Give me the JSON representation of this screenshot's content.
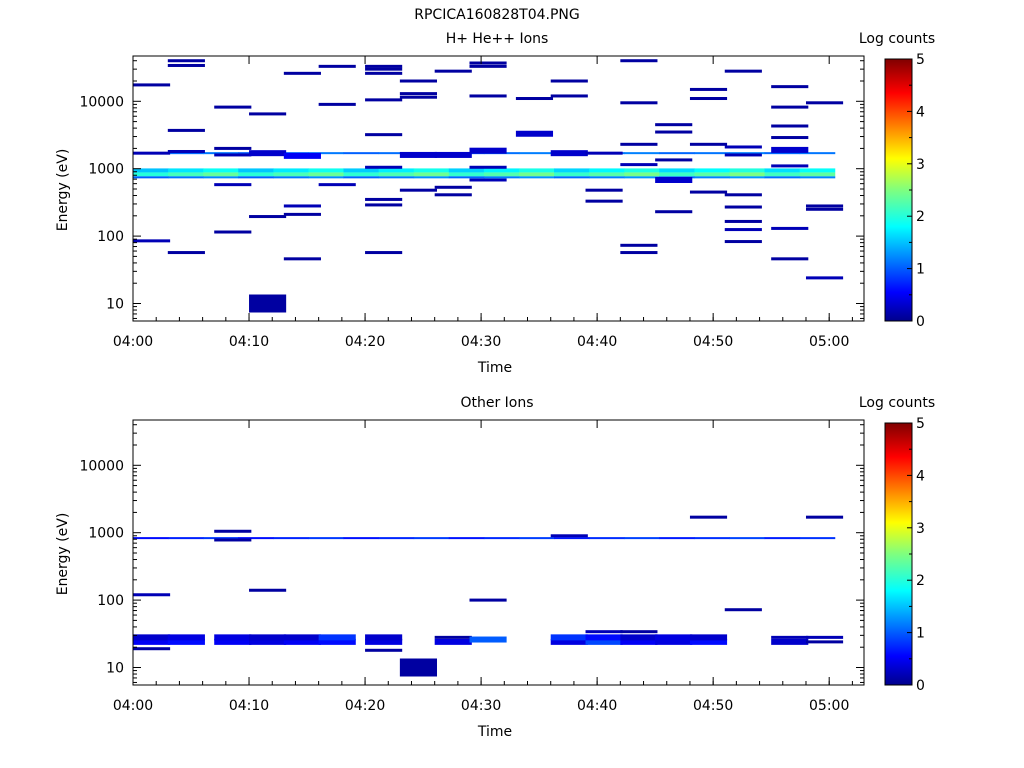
{
  "figure_title": "RPCICA160828T04.PNG",
  "chart_data": [
    {
      "type": "heatmap",
      "title": "H+ He++ Ions",
      "xlabel": "Time",
      "ylabel": "Energy (eV)",
      "yscale": "log",
      "ylim": [
        5.5,
        47000
      ],
      "xlim": [
        "04:00",
        "05:03"
      ],
      "xticks": [
        "04:00",
        "04:10",
        "04:20",
        "04:30",
        "04:40",
        "04:50",
        "05:00"
      ],
      "yticks": [
        "10",
        "100",
        "1000",
        "10000"
      ],
      "colorbar": {
        "label": "Log counts",
        "range": [
          0,
          5
        ],
        "ticks": [
          "0",
          "1",
          "2",
          "3",
          "4",
          "5"
        ],
        "colormap": "jet"
      },
      "bands": [
        {
          "energy_low": 880,
          "energy_high": 1010,
          "log_counts_min": 1.5,
          "log_counts_max": 2.0
        },
        {
          "energy_low": 770,
          "energy_high": 880,
          "log_counts_min": 2.0,
          "log_counts_max": 2.5
        },
        {
          "energy_low": 720,
          "energy_high": 770,
          "log_counts_min": 1.0,
          "log_counts_max": 1.3
        },
        {
          "energy_low": 1700,
          "energy_high": 1760,
          "log_counts_min": 1.0,
          "log_counts_max": 1.2
        }
      ],
      "cells": [
        [
          "04:00",
          85,
          0.2
        ],
        [
          "04:00",
          1700,
          0.2
        ],
        [
          "04:00",
          17500,
          0.1
        ],
        [
          "04:03",
          57,
          0.1
        ],
        [
          "04:03",
          1800,
          0.2
        ],
        [
          "04:03",
          3700,
          0.1
        ],
        [
          "04:03",
          34000,
          0.1
        ],
        [
          "04:03",
          40000,
          0.1
        ],
        [
          "04:07",
          115,
          0.1
        ],
        [
          "04:07",
          580,
          0.2
        ],
        [
          "04:07",
          1600,
          0.2
        ],
        [
          "04:07",
          2000,
          0.1
        ],
        [
          "04:07",
          8200,
          0.1
        ],
        [
          "04:10",
          10,
          0.1
        ],
        [
          "04:10",
          195,
          0.1
        ],
        [
          "04:10",
          1700,
          0.3
        ],
        [
          "04:10",
          6500,
          0.1
        ],
        [
          "04:13",
          46,
          0.1
        ],
        [
          "04:13",
          210,
          0.1
        ],
        [
          "04:13",
          280,
          0.2
        ],
        [
          "04:13",
          1550,
          0.5
        ],
        [
          "04:13",
          26000,
          0.1
        ],
        [
          "04:16",
          580,
          0.2
        ],
        [
          "04:16",
          9000,
          0.1
        ],
        [
          "04:16",
          33000,
          0.1
        ],
        [
          "04:20",
          57,
          0.1
        ],
        [
          "04:20",
          290,
          0.1
        ],
        [
          "04:20",
          350,
          0.1
        ],
        [
          "04:20",
          1050,
          0.2
        ],
        [
          "04:20",
          3200,
          0.1
        ],
        [
          "04:20",
          10500,
          0.1
        ],
        [
          "04:20",
          26000,
          0.1
        ],
        [
          "04:20",
          30000,
          0.1
        ],
        [
          "04:20",
          33000,
          0.1
        ],
        [
          "04:23",
          480,
          0.1
        ],
        [
          "04:23",
          1600,
          0.3
        ],
        [
          "04:23",
          11500,
          0.1
        ],
        [
          "04:23",
          13000,
          0.1
        ],
        [
          "04:23",
          20000,
          0.1
        ],
        [
          "04:26",
          410,
          0.1
        ],
        [
          "04:26",
          530,
          0.1
        ],
        [
          "04:26",
          1600,
          0.3
        ],
        [
          "04:26",
          28000,
          0.1
        ],
        [
          "04:29",
          680,
          0.2
        ],
        [
          "04:29",
          1050,
          0.2
        ],
        [
          "04:29",
          1850,
          0.3
        ],
        [
          "04:29",
          12000,
          0.1
        ],
        [
          "04:29",
          33000,
          0.1
        ],
        [
          "04:29",
          37000,
          0.1
        ],
        [
          "04:33",
          3300,
          0.3
        ],
        [
          "04:33",
          11000,
          0.1
        ],
        [
          "04:36",
          1700,
          0.3
        ],
        [
          "04:36",
          12000,
          0.1
        ],
        [
          "04:36",
          20000,
          0.1
        ],
        [
          "04:39",
          330,
          0.1
        ],
        [
          "04:39",
          480,
          0.1
        ],
        [
          "04:39",
          1700,
          0.2
        ],
        [
          "04:42",
          57,
          0.1
        ],
        [
          "04:42",
          73,
          0.1
        ],
        [
          "04:42",
          1150,
          0.2
        ],
        [
          "04:42",
          2300,
          0.1
        ],
        [
          "04:42",
          9500,
          0.1
        ],
        [
          "04:42",
          40000,
          0.1
        ],
        [
          "04:45",
          230,
          0.1
        ],
        [
          "04:45",
          680,
          0.3
        ],
        [
          "04:45",
          1350,
          0.1
        ],
        [
          "04:45",
          3500,
          0.1
        ],
        [
          "04:45",
          4500,
          0.1
        ],
        [
          "04:48",
          450,
          0.1
        ],
        [
          "04:48",
          2300,
          0.1
        ],
        [
          "04:48",
          11000,
          0.1
        ],
        [
          "04:48",
          15000,
          0.1
        ],
        [
          "04:51",
          83,
          0.1
        ],
        [
          "04:51",
          125,
          0.2
        ],
        [
          "04:51",
          165,
          0.1
        ],
        [
          "04:51",
          270,
          0.1
        ],
        [
          "04:51",
          410,
          0.1
        ],
        [
          "04:51",
          1600,
          0.2
        ],
        [
          "04:51",
          2100,
          0.2
        ],
        [
          "04:51",
          28000,
          0.1
        ],
        [
          "04:55",
          46,
          0.1
        ],
        [
          "04:55",
          130,
          0.2
        ],
        [
          "04:55",
          1100,
          0.2
        ],
        [
          "04:55",
          1900,
          0.3
        ],
        [
          "04:55",
          2900,
          0.1
        ],
        [
          "04:55",
          4300,
          0.1
        ],
        [
          "04:55",
          8200,
          0.1
        ],
        [
          "04:55",
          16500,
          0.1
        ],
        [
          "04:58",
          24,
          0.2
        ],
        [
          "04:58",
          250,
          0.1
        ],
        [
          "04:58",
          280,
          0.1
        ],
        [
          "04:58",
          9500,
          0.1
        ]
      ]
    },
    {
      "type": "heatmap",
      "title": "Other Ions",
      "xlabel": "Time",
      "ylabel": "Energy (eV)",
      "yscale": "log",
      "ylim": [
        5.5,
        47000
      ],
      "xlim": [
        "04:00",
        "05:03"
      ],
      "xticks": [
        "04:00",
        "04:10",
        "04:20",
        "04:30",
        "04:40",
        "04:50",
        "05:00"
      ],
      "yticks": [
        "10",
        "100",
        "1000",
        "10000"
      ],
      "colorbar": {
        "label": "Log counts",
        "range": [
          0,
          5
        ],
        "ticks": [
          "0",
          "1",
          "2",
          "3",
          "4",
          "5"
        ],
        "colormap": "jet"
      },
      "bands": [
        {
          "energy_low": 820,
          "energy_high": 860,
          "log_counts_min": 0.6,
          "log_counts_max": 0.9
        }
      ],
      "cells": [
        [
          "04:00",
          19,
          0.1
        ],
        [
          "04:00",
          24,
          0.5
        ],
        [
          "04:00",
          28,
          0.3
        ],
        [
          "04:00",
          120,
          0.2
        ],
        [
          "04:03",
          24,
          0.6
        ],
        [
          "04:03",
          28,
          0.4
        ],
        [
          "04:07",
          24,
          0.5
        ],
        [
          "04:07",
          28,
          0.4
        ],
        [
          "04:07",
          780,
          0.1
        ],
        [
          "04:07",
          1050,
          0.1
        ],
        [
          "04:10",
          24,
          0.4
        ],
        [
          "04:10",
          28,
          0.3
        ],
        [
          "04:10",
          140,
          0.1
        ],
        [
          "04:13",
          24,
          0.5
        ],
        [
          "04:13",
          28,
          0.3
        ],
        [
          "04:16",
          24,
          0.6
        ],
        [
          "04:16",
          28,
          0.8
        ],
        [
          "04:20",
          18,
          0.1
        ],
        [
          "04:20",
          24,
          0.4
        ],
        [
          "04:20",
          28,
          0.3
        ],
        [
          "04:23",
          10,
          0.1
        ],
        [
          "04:26",
          24,
          0.4
        ],
        [
          "04:26",
          28,
          0.1
        ],
        [
          "04:29",
          26,
          1.0
        ],
        [
          "04:29",
          100,
          0.1
        ],
        [
          "04:36",
          24,
          0.4
        ],
        [
          "04:36",
          28,
          0.8
        ],
        [
          "04:36",
          900,
          0.2
        ],
        [
          "04:39",
          24,
          0.9
        ],
        [
          "04:39",
          28,
          0.6
        ],
        [
          "04:39",
          34,
          0.2
        ],
        [
          "04:42",
          24,
          0.5
        ],
        [
          "04:42",
          28,
          0.3
        ],
        [
          "04:42",
          34,
          0.1
        ],
        [
          "04:45",
          24,
          0.4
        ],
        [
          "04:45",
          28,
          0.4
        ],
        [
          "04:48",
          24,
          0.6
        ],
        [
          "04:48",
          28,
          0.3
        ],
        [
          "04:48",
          1700,
          0.1
        ],
        [
          "04:51",
          72,
          0.1
        ],
        [
          "04:55",
          24,
          0.3
        ],
        [
          "04:55",
          28,
          0.2
        ],
        [
          "04:58",
          24,
          0.1
        ],
        [
          "04:58",
          28,
          0.2
        ],
        [
          "04:58",
          1700,
          0.1
        ]
      ]
    }
  ]
}
